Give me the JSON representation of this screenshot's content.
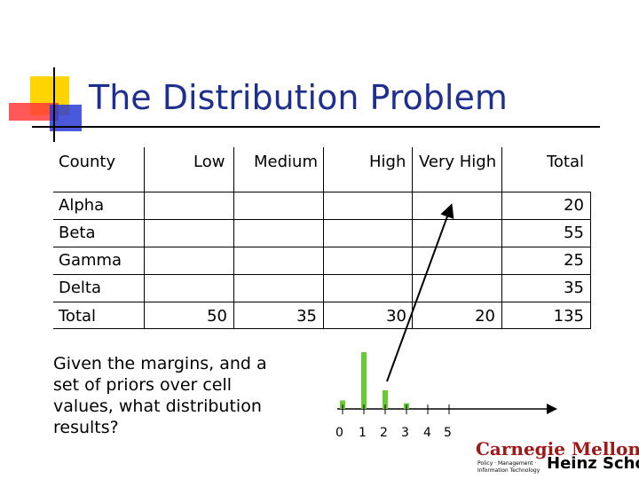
{
  "title": "The Distribution Problem",
  "table": {
    "headers": [
      "County",
      "Low",
      "Medium",
      "High",
      "Very High",
      "Total"
    ],
    "rows": [
      {
        "county": "Alpha",
        "total": "20"
      },
      {
        "county": "Beta",
        "total": "55"
      },
      {
        "county": "Gamma",
        "total": "25"
      },
      {
        "county": "Delta",
        "total": "35"
      }
    ],
    "totals": {
      "label": "Total",
      "low": "50",
      "medium": "35",
      "high": "30",
      "very_high": "20",
      "grand": "135"
    }
  },
  "question": "Given the margins, and a set of priors over cell values, what distribution results?",
  "histogram": {
    "tick_labels": [
      "0",
      "1",
      "2",
      "3",
      "4",
      "5"
    ],
    "values": [
      0.15,
      1.0,
      0.33,
      0.1,
      0,
      0
    ]
  },
  "logo": {
    "name": "Carnegie Mellon",
    "line1": "Policy · Management ·",
    "line2": "Information Technology",
    "school": "Heinz School"
  }
}
